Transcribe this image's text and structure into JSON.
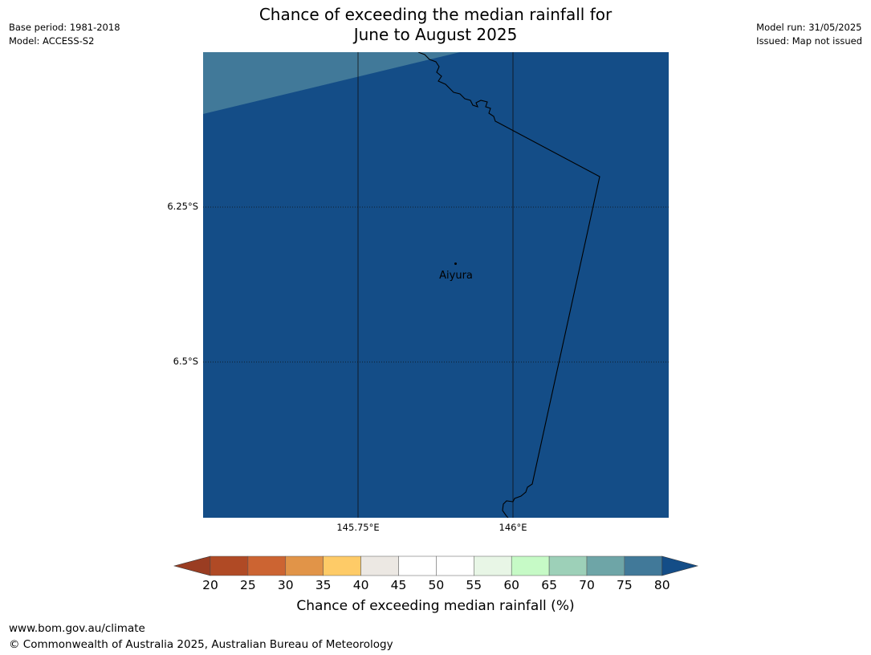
{
  "header": {
    "title_line1": "Chance of exceeding the median rainfall for",
    "title_line2": "June to August 2025",
    "base_period": "Base period: 1981-2018",
    "model": "Model: ACCESS-S2",
    "model_run": "Model run: 31/05/2025",
    "issued": "Issued: Map not issued"
  },
  "map": {
    "background_color": "#144d87",
    "region_color": "#417999",
    "lat_labels": [
      "6.25°S",
      "6.5°S"
    ],
    "lon_labels": [
      "145.75°E",
      "146°E"
    ],
    "place": {
      "name": "Aiyura"
    }
  },
  "colorbar": {
    "ticks": [
      "20",
      "25",
      "30",
      "35",
      "40",
      "45",
      "50",
      "55",
      "60",
      "65",
      "70",
      "75",
      "80"
    ],
    "colors": [
      "#b04a25",
      "#cc6432",
      "#e19448",
      "#fecb67",
      "#ece8e3",
      "#ffffff",
      "#ffffff",
      "#e8f6e6",
      "#c6fac6",
      "#9dd0b8",
      "#6ea5a7",
      "#417999"
    ],
    "under_color": "#9a3d22",
    "over_color": "#144d87",
    "label": "Chance of exceeding median rainfall (%)"
  },
  "footer": {
    "url": "www.bom.gov.au/climate",
    "copyright": "© Commonwealth of Australia 2025, Australian Bureau of Meteorology"
  }
}
